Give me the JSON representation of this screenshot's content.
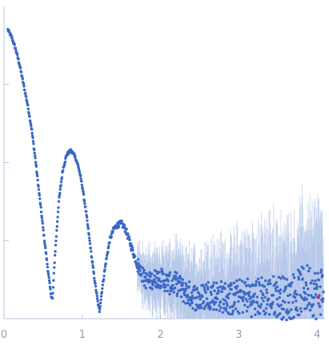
{
  "chart_data": {
    "type": "scatter",
    "title": "",
    "xlabel": "",
    "ylabel": "",
    "xlim": [
      0,
      4.1
    ],
    "ylim": [
      0,
      4
    ],
    "x_ticks": [
      0,
      1,
      2,
      3,
      4
    ],
    "x_tick_labels": [
      "0",
      "1",
      "2",
      "3",
      "4"
    ],
    "y_ticks": [
      1,
      2,
      3
    ],
    "y_tick_labels": [
      "",
      "",
      ""
    ],
    "grid": false,
    "legend": "none",
    "colors": {
      "points": "#3a68c7",
      "error_bars": "#a9bde6",
      "outlier": "#e0302a",
      "axis": "#b9c6dc",
      "tick_label": "#8e9fc0"
    },
    "series": [
      {
        "x": [
          0.05,
          0.1,
          0.15,
          0.2,
          0.25,
          0.3,
          0.35,
          0.4,
          0.45,
          0.5,
          0.55,
          0.6,
          0.62,
          0.65,
          0.7,
          0.75,
          0.8,
          0.85,
          0.9,
          0.95,
          1.0,
          1.05,
          1.1,
          1.15,
          1.2,
          1.22,
          1.25,
          1.3,
          1.35,
          1.4,
          1.45,
          1.5,
          1.55,
          1.6,
          1.65,
          1.7,
          1.75,
          1.8,
          1.85,
          1.9,
          1.95,
          2.0,
          2.1,
          2.2,
          2.3,
          2.4,
          2.5,
          2.6,
          2.7,
          2.8,
          2.9,
          3.0,
          3.1,
          3.2,
          3.3,
          3.4,
          3.5,
          3.6,
          3.7,
          3.8,
          3.9,
          4.0,
          4.05
        ],
        "y": [
          3.7,
          3.6,
          3.45,
          3.25,
          3.0,
          2.75,
          2.45,
          2.05,
          1.6,
          1.15,
          0.72,
          0.3,
          0.25,
          0.8,
          1.5,
          1.9,
          2.1,
          2.15,
          2.1,
          1.95,
          1.7,
          1.35,
          0.95,
          0.55,
          0.2,
          0.1,
          0.35,
          0.72,
          1.0,
          1.15,
          1.2,
          1.22,
          1.15,
          1.0,
          0.85,
          0.7,
          0.6,
          0.5,
          0.48,
          0.5,
          0.52,
          0.52,
          0.45,
          0.45,
          0.35,
          0.3,
          0.25,
          0.32,
          0.3,
          0.28,
          0.25,
          0.28,
          0.3,
          0.25,
          0.3,
          0.28,
          0.3,
          0.25,
          0.3,
          0.35,
          0.4,
          0.3,
          0.38
        ]
      }
    ]
  }
}
